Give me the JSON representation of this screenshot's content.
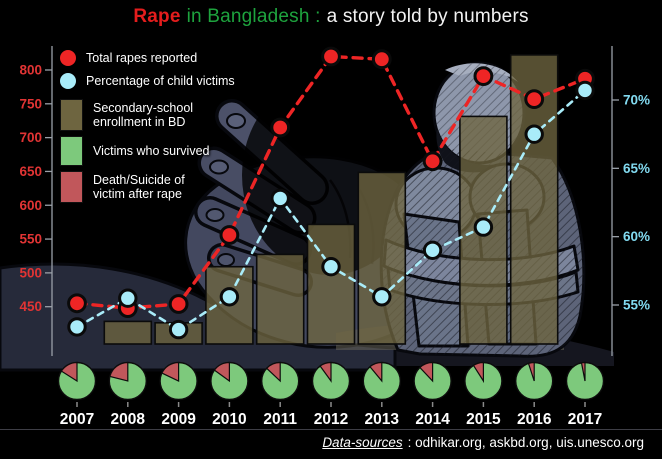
{
  "header": {
    "title_red": "Rape",
    "title_green": "in Bangladesh :",
    "title_rest": "a story told by numbers"
  },
  "legend": {
    "total_rapes": "Total rapes reported",
    "child_pct": "Percentage of child victims",
    "enrollment_line1": "Secondary-school",
    "enrollment_line2": "enrollment in BD",
    "survived": "Victims who survived",
    "death_line1": "Death/Suicide of",
    "death_line2": "victim after rape"
  },
  "footer": {
    "label": "Data-sources",
    "sources": ": odhikar.org, askbd.org, uis.unesco.org"
  },
  "chart_data": {
    "type": "combo-line-bar-pie",
    "categories": [
      "2007",
      "2008",
      "2009",
      "2010",
      "2011",
      "2012",
      "2013",
      "2014",
      "2015",
      "2016",
      "2017"
    ],
    "series": [
      {
        "name": "Total rapes reported",
        "type": "line",
        "axis": "left",
        "color": "#ee2525",
        "values": [
          455,
          448,
          454,
          556,
          715,
          820,
          816,
          665,
          791,
          757,
          787
        ]
      },
      {
        "name": "Percentage of child victims",
        "type": "line",
        "axis": "right",
        "color": "#a9ecf9",
        "suffix": "%",
        "values": [
          53.4,
          55.5,
          53.2,
          55.6,
          62.8,
          57.8,
          55.6,
          59.0,
          60.7,
          67.5,
          70.7
        ]
      },
      {
        "name": "Secondary-school enrollment in BD",
        "type": "bar",
        "axis": "right",
        "color": "#6e6540",
        "suffix": "%",
        "values": [
          null,
          53.8,
          53.7,
          57.8,
          58.7,
          60.9,
          64.7,
          null,
          68.8,
          73.3,
          null
        ]
      }
    ],
    "pies": {
      "slices": [
        "Victims who survived",
        "Death/Suicide of victim after rape"
      ],
      "colors": [
        "#7dc97c",
        "#c1575b"
      ],
      "survived_pct": [
        84,
        79,
        82,
        85,
        87,
        90,
        89,
        88,
        91,
        95,
        97
      ],
      "death_pct": [
        16,
        21,
        18,
        15,
        13,
        10,
        11,
        12,
        9,
        5,
        3
      ]
    },
    "left_axis": {
      "ticks": [
        450,
        500,
        550,
        600,
        650,
        700,
        750,
        800
      ],
      "color": "#e13434",
      "range": [
        430,
        835
      ]
    },
    "right_axis": {
      "ticks": [
        55,
        60,
        65,
        70
      ],
      "suffix": "%",
      "color": "#82daf0",
      "range": [
        53,
        72.5
      ]
    },
    "grid": false,
    "legend_position": "top-left"
  }
}
